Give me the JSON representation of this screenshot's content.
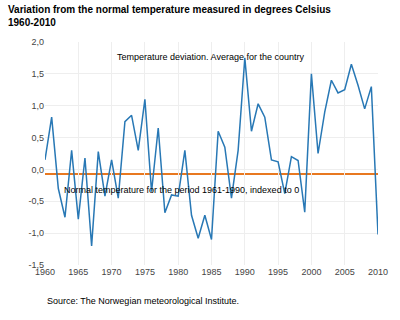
{
  "chart_data": {
    "type": "line",
    "title": "Variation from the normal temperature measured in degrees Celsius",
    "subtitle": "1960-2010",
    "annotations": [
      "Temperature deviation. Average for the country",
      "Normal temperature for the period 1961-1990, indexed to 0"
    ],
    "source": "Source: The Norwegian meteorological Institute.",
    "x": [
      1960,
      1961,
      1962,
      1963,
      1964,
      1965,
      1966,
      1967,
      1968,
      1969,
      1970,
      1971,
      1972,
      1973,
      1974,
      1975,
      1976,
      1977,
      1978,
      1979,
      1980,
      1981,
      1982,
      1983,
      1984,
      1985,
      1986,
      1987,
      1988,
      1989,
      1990,
      1991,
      1992,
      1993,
      1994,
      1995,
      1996,
      1997,
      1998,
      1999,
      2000,
      2001,
      2002,
      2003,
      2004,
      2005,
      2006,
      2007,
      2008,
      2009,
      2010
    ],
    "values": [
      0.15,
      0.82,
      -0.3,
      -0.75,
      0.3,
      -0.78,
      0.18,
      -1.2,
      0.28,
      -0.42,
      0.15,
      -0.45,
      0.75,
      0.85,
      0.3,
      1.1,
      -0.35,
      0.65,
      -0.68,
      -0.4,
      -0.42,
      0.3,
      -0.72,
      -1.08,
      -0.72,
      -1.1,
      0.6,
      0.35,
      -0.45,
      0.3,
      1.75,
      0.6,
      1.03,
      0.82,
      0.15,
      0.12,
      -0.38,
      0.2,
      0.14,
      -0.67,
      1.5,
      0.25,
      0.9,
      1.4,
      1.2,
      1.25,
      1.65,
      1.32,
      0.95,
      1.3,
      -1.02
    ],
    "color": "#2878b5",
    "ref_line": {
      "y": -0.07,
      "color": "#e87820"
    },
    "xlim": [
      1960,
      2010
    ],
    "xticks": [
      1960,
      1965,
      1970,
      1975,
      1980,
      1985,
      1990,
      1995,
      2000,
      2005,
      2010
    ],
    "ylim": [
      -1.5,
      2.0
    ],
    "yticks": [
      {
        "value": -1.5,
        "label": "-1,5"
      },
      {
        "value": -1.0,
        "label": "-1,0"
      },
      {
        "value": -0.5,
        "label": "-0,5"
      },
      {
        "value": 0.0,
        "label": "0,0"
      },
      {
        "value": 0.5,
        "label": "0,5"
      },
      {
        "value": 1.0,
        "label": "1,0"
      },
      {
        "value": 1.5,
        "label": "1,5"
      },
      {
        "value": 2.0,
        "label": "2,0"
      }
    ],
    "grid": true
  }
}
